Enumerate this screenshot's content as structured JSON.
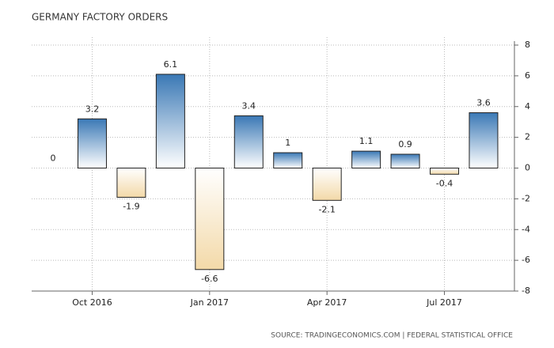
{
  "chart_data": {
    "type": "bar",
    "title": "GERMANY FACTORY ORDERS",
    "categories": [
      null,
      "Oct 2016",
      null,
      null,
      "Jan 2017",
      null,
      null,
      "Apr 2017",
      null,
      null,
      "Jul 2017",
      null
    ],
    "values": [
      0,
      3.2,
      -1.9,
      6.1,
      -6.6,
      3.4,
      1,
      -2.1,
      1.1,
      0.9,
      -0.4,
      3.6
    ],
    "positive_color": "#3a78b5",
    "negative_color": "#f3d9a8",
    "ylim": [
      -8,
      8
    ],
    "yticks": [
      -8,
      -6,
      -4,
      -2,
      0,
      2,
      4,
      6,
      8
    ],
    "grid": true,
    "source": "SOURCE: TRADINGECONOMICS.COM | FEDERAL STATISTICAL OFFICE"
  }
}
